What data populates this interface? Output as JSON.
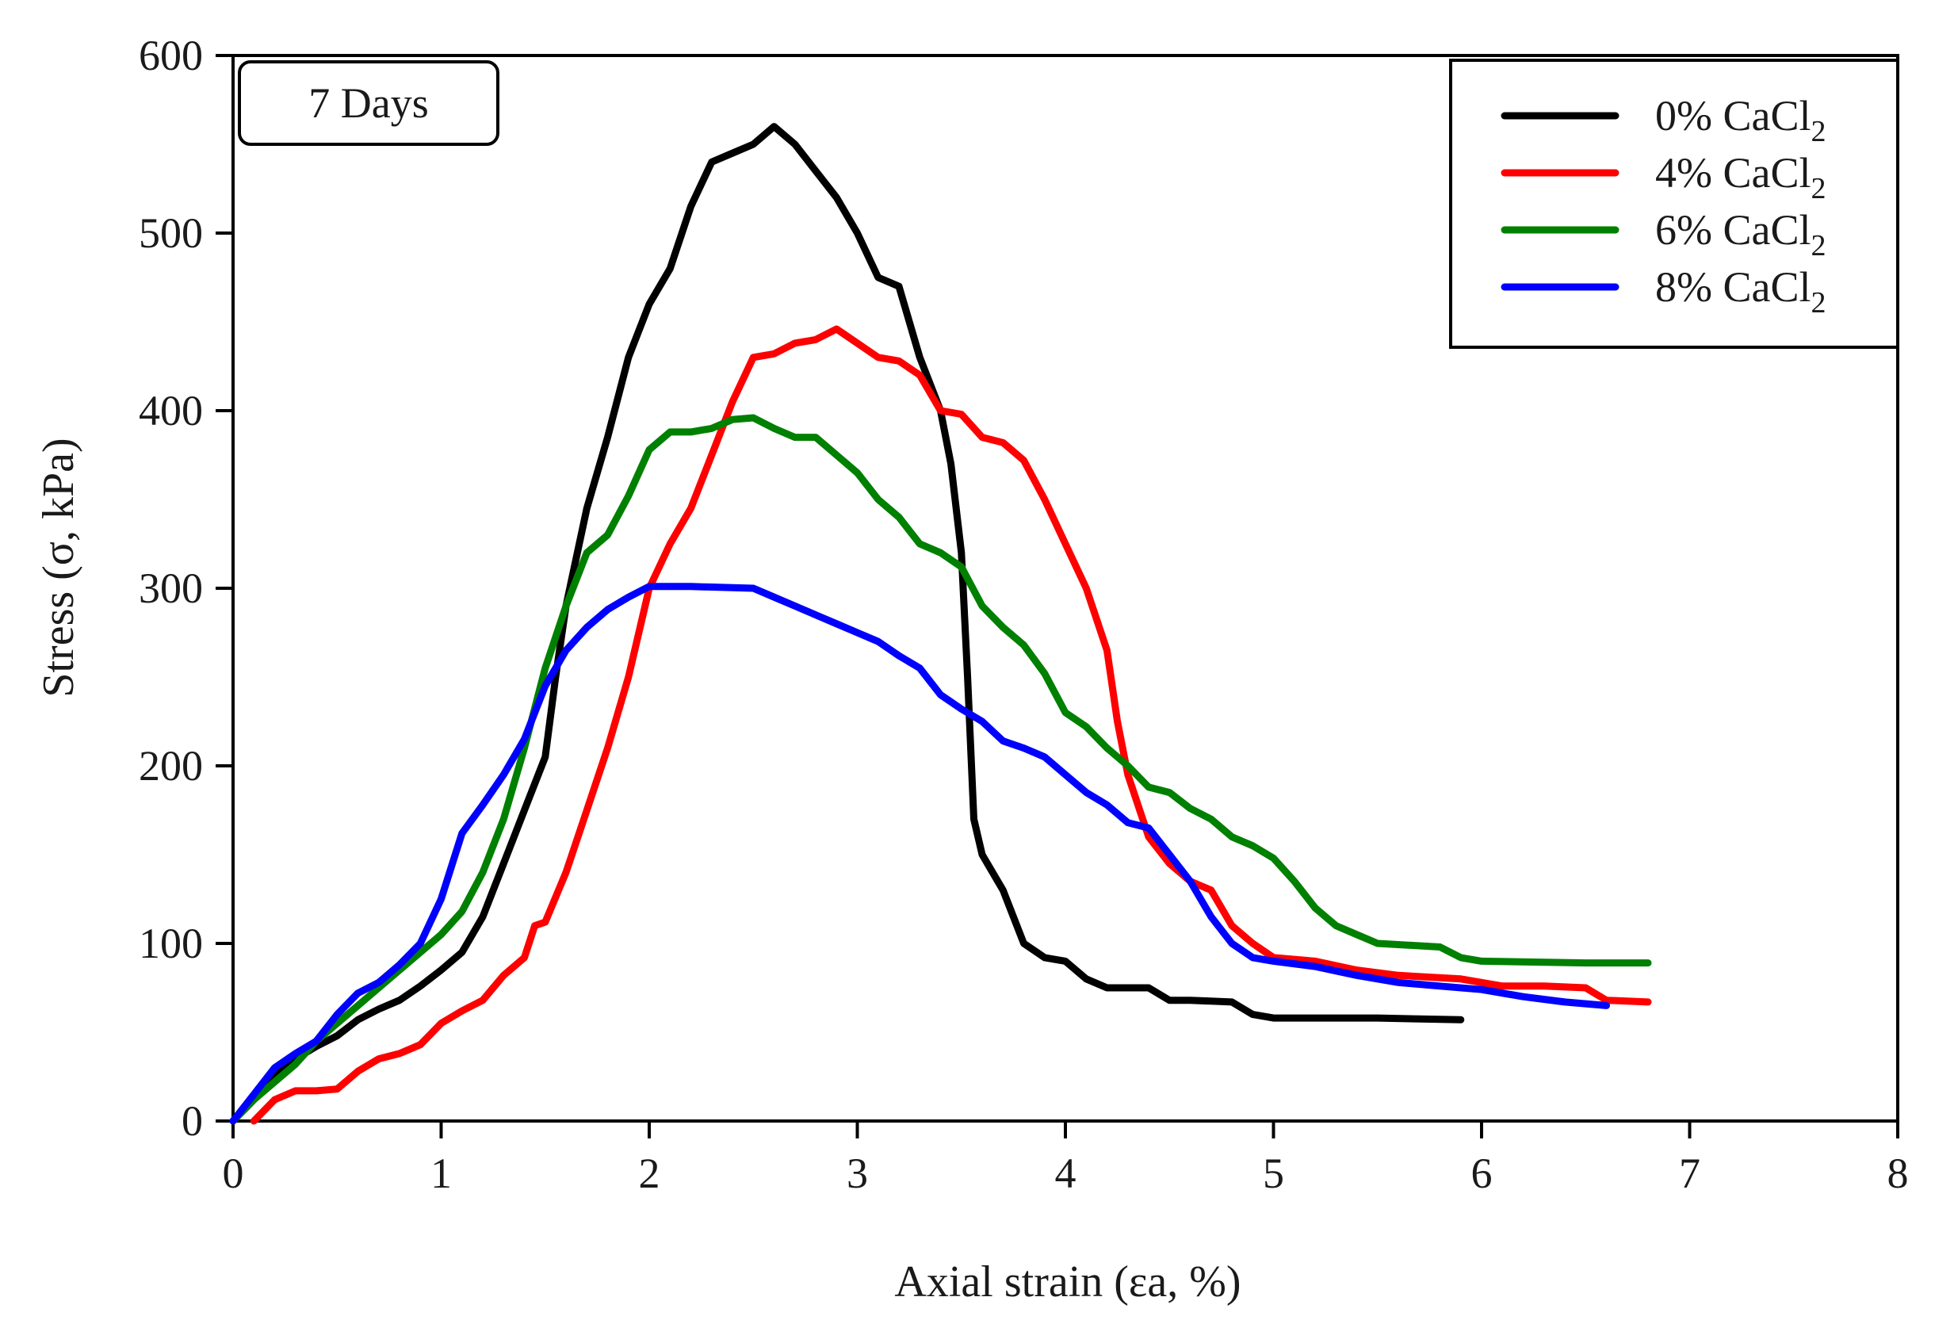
{
  "chart_data": {
    "type": "line",
    "title": "",
    "annotation": "7 Days",
    "xlabel": "Axial strain (εa, %)",
    "ylabel": "Stress (σ, kPa)",
    "xlim": [
      0,
      8
    ],
    "ylim": [
      0,
      600
    ],
    "xticks": [
      0,
      1,
      2,
      3,
      4,
      5,
      6,
      7,
      8
    ],
    "yticks": [
      0,
      100,
      200,
      300,
      400,
      500,
      600
    ],
    "grid": false,
    "legend_position": "top-right",
    "series": [
      {
        "name": "0% CaCl2",
        "label_main": "0% CaCl",
        "label_sub": "2",
        "color": "#000000",
        "points": [
          [
            0,
            0
          ],
          [
            0.1,
            12
          ],
          [
            0.2,
            25
          ],
          [
            0.3,
            35
          ],
          [
            0.4,
            42
          ],
          [
            0.5,
            48
          ],
          [
            0.6,
            57
          ],
          [
            0.7,
            63
          ],
          [
            0.8,
            68
          ],
          [
            0.9,
            76
          ],
          [
            1.0,
            85
          ],
          [
            1.1,
            95
          ],
          [
            1.2,
            115
          ],
          [
            1.3,
            145
          ],
          [
            1.4,
            175
          ],
          [
            1.5,
            205
          ],
          [
            1.55,
            250
          ],
          [
            1.6,
            290
          ],
          [
            1.7,
            345
          ],
          [
            1.8,
            385
          ],
          [
            1.9,
            430
          ],
          [
            2.0,
            460
          ],
          [
            2.1,
            480
          ],
          [
            2.2,
            515
          ],
          [
            2.3,
            540
          ],
          [
            2.4,
            545
          ],
          [
            2.5,
            550
          ],
          [
            2.6,
            560
          ],
          [
            2.7,
            550
          ],
          [
            2.8,
            535
          ],
          [
            2.9,
            520
          ],
          [
            3.0,
            500
          ],
          [
            3.1,
            475
          ],
          [
            3.2,
            470
          ],
          [
            3.3,
            430
          ],
          [
            3.4,
            400
          ],
          [
            3.45,
            370
          ],
          [
            3.5,
            320
          ],
          [
            3.53,
            250
          ],
          [
            3.56,
            170
          ],
          [
            3.6,
            150
          ],
          [
            3.7,
            130
          ],
          [
            3.8,
            100
          ],
          [
            3.9,
            92
          ],
          [
            4.0,
            90
          ],
          [
            4.1,
            80
          ],
          [
            4.2,
            75
          ],
          [
            4.3,
            75
          ],
          [
            4.4,
            75
          ],
          [
            4.5,
            68
          ],
          [
            4.6,
            68
          ],
          [
            4.8,
            67
          ],
          [
            4.9,
            60
          ],
          [
            5.0,
            58
          ],
          [
            5.5,
            58
          ],
          [
            5.9,
            57
          ]
        ]
      },
      {
        "name": "4% CaCl2",
        "label_main": "4% CaCl",
        "label_sub": "2",
        "color": "#ff0000",
        "points": [
          [
            0.1,
            0
          ],
          [
            0.2,
            12
          ],
          [
            0.3,
            17
          ],
          [
            0.4,
            17
          ],
          [
            0.5,
            18
          ],
          [
            0.6,
            28
          ],
          [
            0.7,
            35
          ],
          [
            0.8,
            38
          ],
          [
            0.9,
            43
          ],
          [
            1.0,
            55
          ],
          [
            1.1,
            62
          ],
          [
            1.2,
            68
          ],
          [
            1.3,
            82
          ],
          [
            1.4,
            92
          ],
          [
            1.45,
            110
          ],
          [
            1.5,
            112
          ],
          [
            1.6,
            140
          ],
          [
            1.7,
            175
          ],
          [
            1.8,
            210
          ],
          [
            1.9,
            250
          ],
          [
            2.0,
            300
          ],
          [
            2.1,
            325
          ],
          [
            2.2,
            345
          ],
          [
            2.3,
            375
          ],
          [
            2.4,
            405
          ],
          [
            2.5,
            430
          ],
          [
            2.6,
            432
          ],
          [
            2.7,
            438
          ],
          [
            2.8,
            440
          ],
          [
            2.9,
            446
          ],
          [
            3.0,
            438
          ],
          [
            3.1,
            430
          ],
          [
            3.2,
            428
          ],
          [
            3.3,
            420
          ],
          [
            3.4,
            400
          ],
          [
            3.5,
            398
          ],
          [
            3.6,
            385
          ],
          [
            3.7,
            382
          ],
          [
            3.8,
            372
          ],
          [
            3.9,
            350
          ],
          [
            4.0,
            325
          ],
          [
            4.1,
            300
          ],
          [
            4.2,
            265
          ],
          [
            4.25,
            225
          ],
          [
            4.3,
            195
          ],
          [
            4.4,
            160
          ],
          [
            4.5,
            145
          ],
          [
            4.6,
            135
          ],
          [
            4.7,
            130
          ],
          [
            4.8,
            110
          ],
          [
            4.9,
            100
          ],
          [
            5.0,
            92
          ],
          [
            5.2,
            90
          ],
          [
            5.4,
            85
          ],
          [
            5.6,
            82
          ],
          [
            5.9,
            80
          ],
          [
            6.1,
            76
          ],
          [
            6.3,
            76
          ],
          [
            6.5,
            75
          ],
          [
            6.6,
            68
          ],
          [
            6.8,
            67
          ]
        ]
      },
      {
        "name": "6% CaCl2",
        "label_main": "6% CaCl",
        "label_sub": "2",
        "color": "#008000",
        "points": [
          [
            0,
            0
          ],
          [
            0.1,
            12
          ],
          [
            0.2,
            22
          ],
          [
            0.3,
            32
          ],
          [
            0.4,
            45
          ],
          [
            0.5,
            55
          ],
          [
            0.6,
            65
          ],
          [
            0.7,
            75
          ],
          [
            0.8,
            85
          ],
          [
            0.9,
            95
          ],
          [
            1.0,
            105
          ],
          [
            1.1,
            118
          ],
          [
            1.2,
            140
          ],
          [
            1.3,
            170
          ],
          [
            1.4,
            210
          ],
          [
            1.5,
            255
          ],
          [
            1.6,
            290
          ],
          [
            1.7,
            320
          ],
          [
            1.8,
            330
          ],
          [
            1.9,
            352
          ],
          [
            2.0,
            378
          ],
          [
            2.1,
            388
          ],
          [
            2.2,
            388
          ],
          [
            2.3,
            390
          ],
          [
            2.4,
            395
          ],
          [
            2.5,
            396
          ],
          [
            2.6,
            390
          ],
          [
            2.7,
            385
          ],
          [
            2.8,
            385
          ],
          [
            2.9,
            375
          ],
          [
            3.0,
            365
          ],
          [
            3.1,
            350
          ],
          [
            3.2,
            340
          ],
          [
            3.3,
            325
          ],
          [
            3.4,
            320
          ],
          [
            3.5,
            312
          ],
          [
            3.6,
            290
          ],
          [
            3.7,
            278
          ],
          [
            3.8,
            268
          ],
          [
            3.9,
            252
          ],
          [
            4.0,
            230
          ],
          [
            4.1,
            222
          ],
          [
            4.2,
            210
          ],
          [
            4.3,
            200
          ],
          [
            4.4,
            188
          ],
          [
            4.5,
            185
          ],
          [
            4.6,
            176
          ],
          [
            4.7,
            170
          ],
          [
            4.8,
            160
          ],
          [
            4.9,
            155
          ],
          [
            5.0,
            148
          ],
          [
            5.1,
            135
          ],
          [
            5.2,
            120
          ],
          [
            5.3,
            110
          ],
          [
            5.4,
            105
          ],
          [
            5.5,
            100
          ],
          [
            5.8,
            98
          ],
          [
            5.9,
            92
          ],
          [
            6.0,
            90
          ],
          [
            6.5,
            89
          ],
          [
            6.8,
            89
          ]
        ]
      },
      {
        "name": "8% CaCl2",
        "label_main": "8% CaCl",
        "label_sub": "2",
        "color": "#0000ff",
        "points": [
          [
            0,
            0
          ],
          [
            0.1,
            15
          ],
          [
            0.2,
            30
          ],
          [
            0.3,
            38
          ],
          [
            0.4,
            45
          ],
          [
            0.5,
            60
          ],
          [
            0.6,
            72
          ],
          [
            0.7,
            78
          ],
          [
            0.8,
            88
          ],
          [
            0.9,
            100
          ],
          [
            1.0,
            125
          ],
          [
            1.1,
            162
          ],
          [
            1.2,
            178
          ],
          [
            1.3,
            195
          ],
          [
            1.4,
            215
          ],
          [
            1.5,
            245
          ],
          [
            1.6,
            265
          ],
          [
            1.7,
            278
          ],
          [
            1.8,
            288
          ],
          [
            1.9,
            295
          ],
          [
            2.0,
            301
          ],
          [
            2.2,
            301
          ],
          [
            2.5,
            300
          ],
          [
            2.6,
            295
          ],
          [
            2.7,
            290
          ],
          [
            2.8,
            285
          ],
          [
            2.9,
            280
          ],
          [
            3.0,
            275
          ],
          [
            3.1,
            270
          ],
          [
            3.2,
            262
          ],
          [
            3.3,
            255
          ],
          [
            3.4,
            240
          ],
          [
            3.5,
            232
          ],
          [
            3.6,
            225
          ],
          [
            3.7,
            214
          ],
          [
            3.8,
            210
          ],
          [
            3.9,
            205
          ],
          [
            4.0,
            195
          ],
          [
            4.1,
            185
          ],
          [
            4.2,
            178
          ],
          [
            4.3,
            168
          ],
          [
            4.4,
            165
          ],
          [
            4.5,
            150
          ],
          [
            4.6,
            135
          ],
          [
            4.7,
            115
          ],
          [
            4.8,
            100
          ],
          [
            4.9,
            92
          ],
          [
            5.0,
            90
          ],
          [
            5.2,
            87
          ],
          [
            5.4,
            82
          ],
          [
            5.6,
            78
          ],
          [
            5.8,
            76
          ],
          [
            6.0,
            74
          ],
          [
            6.2,
            70
          ],
          [
            6.4,
            67
          ],
          [
            6.6,
            65
          ]
        ]
      }
    ]
  }
}
